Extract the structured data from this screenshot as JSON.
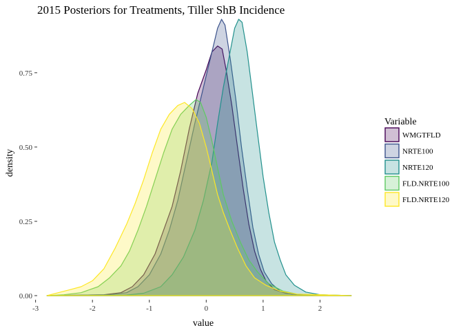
{
  "chart_data": {
    "type": "area",
    "title": "2015 Posteriors for Treatments, Tiller ShB Incidence",
    "xlabel": "value",
    "ylabel": "density",
    "xlim": [
      -2.85,
      2.6
    ],
    "ylim": [
      0,
      0.93
    ],
    "x_ticks": [
      "-3",
      "-2",
      "-1",
      "0",
      "1",
      "2"
    ],
    "y_ticks": [
      "0.00",
      "0.25",
      "0.50",
      "0.75"
    ],
    "grid": false,
    "legend": {
      "title": "Variable",
      "position": "right"
    },
    "series": [
      {
        "name": "WMGTFLD",
        "color": "#440154",
        "points": [
          [
            -2.8,
            0
          ],
          [
            -1.8,
            0.003
          ],
          [
            -1.5,
            0.01
          ],
          [
            -1.3,
            0.03
          ],
          [
            -1.1,
            0.07
          ],
          [
            -0.9,
            0.14
          ],
          [
            -0.75,
            0.22
          ],
          [
            -0.6,
            0.3
          ],
          [
            -0.45,
            0.42
          ],
          [
            -0.3,
            0.56
          ],
          [
            -0.15,
            0.68
          ],
          [
            0,
            0.76
          ],
          [
            0.1,
            0.82
          ],
          [
            0.2,
            0.84
          ],
          [
            0.28,
            0.83
          ],
          [
            0.35,
            0.76
          ],
          [
            0.45,
            0.64
          ],
          [
            0.55,
            0.5
          ],
          [
            0.65,
            0.36
          ],
          [
            0.75,
            0.24
          ],
          [
            0.85,
            0.15
          ],
          [
            0.95,
            0.09
          ],
          [
            1.05,
            0.05
          ],
          [
            1.2,
            0.02
          ],
          [
            1.4,
            0.008
          ],
          [
            1.7,
            0.002
          ],
          [
            2.55,
            0
          ]
        ]
      },
      {
        "name": "NRTE100",
        "color": "#3b528b",
        "points": [
          [
            -2.8,
            0
          ],
          [
            -1.7,
            0.003
          ],
          [
            -1.4,
            0.01
          ],
          [
            -1.2,
            0.03
          ],
          [
            -1.0,
            0.07
          ],
          [
            -0.8,
            0.14
          ],
          [
            -0.65,
            0.22
          ],
          [
            -0.5,
            0.32
          ],
          [
            -0.35,
            0.45
          ],
          [
            -0.2,
            0.58
          ],
          [
            -0.05,
            0.7
          ],
          [
            0.1,
            0.82
          ],
          [
            0.2,
            0.9
          ],
          [
            0.27,
            0.93
          ],
          [
            0.33,
            0.91
          ],
          [
            0.42,
            0.8
          ],
          [
            0.52,
            0.66
          ],
          [
            0.62,
            0.5
          ],
          [
            0.72,
            0.36
          ],
          [
            0.82,
            0.23
          ],
          [
            0.92,
            0.14
          ],
          [
            1.02,
            0.08
          ],
          [
            1.15,
            0.04
          ],
          [
            1.3,
            0.015
          ],
          [
            1.5,
            0.005
          ],
          [
            1.8,
            0.001
          ],
          [
            2.55,
            0
          ]
        ]
      },
      {
        "name": "NRTE120",
        "color": "#21908c",
        "points": [
          [
            -2.8,
            0
          ],
          [
            -1.4,
            0.002
          ],
          [
            -1.1,
            0.008
          ],
          [
            -0.8,
            0.03
          ],
          [
            -0.6,
            0.07
          ],
          [
            -0.4,
            0.13
          ],
          [
            -0.2,
            0.22
          ],
          [
            -0.05,
            0.32
          ],
          [
            0.1,
            0.45
          ],
          [
            0.2,
            0.58
          ],
          [
            0.3,
            0.7
          ],
          [
            0.4,
            0.8
          ],
          [
            0.5,
            0.9
          ],
          [
            0.57,
            0.93
          ],
          [
            0.63,
            0.92
          ],
          [
            0.72,
            0.82
          ],
          [
            0.8,
            0.7
          ],
          [
            0.9,
            0.55
          ],
          [
            1.0,
            0.4
          ],
          [
            1.1,
            0.28
          ],
          [
            1.2,
            0.18
          ],
          [
            1.3,
            0.12
          ],
          [
            1.4,
            0.07
          ],
          [
            1.55,
            0.035
          ],
          [
            1.75,
            0.012
          ],
          [
            2.0,
            0.003
          ],
          [
            2.55,
            0
          ]
        ]
      },
      {
        "name": "FLD.NRTE100",
        "color": "#5ec962",
        "points": [
          [
            -2.8,
            0
          ],
          [
            -2.5,
            0.003
          ],
          [
            -2.2,
            0.01
          ],
          [
            -1.9,
            0.03
          ],
          [
            -1.7,
            0.06
          ],
          [
            -1.5,
            0.1
          ],
          [
            -1.35,
            0.15
          ],
          [
            -1.2,
            0.22
          ],
          [
            -1.05,
            0.3
          ],
          [
            -0.9,
            0.39
          ],
          [
            -0.75,
            0.48
          ],
          [
            -0.6,
            0.56
          ],
          [
            -0.45,
            0.61
          ],
          [
            -0.3,
            0.64
          ],
          [
            -0.18,
            0.66
          ],
          [
            -0.1,
            0.65
          ],
          [
            0.0,
            0.6
          ],
          [
            0.1,
            0.52
          ],
          [
            0.2,
            0.43
          ],
          [
            0.3,
            0.34
          ],
          [
            0.45,
            0.25
          ],
          [
            0.6,
            0.18
          ],
          [
            0.75,
            0.12
          ],
          [
            0.9,
            0.08
          ],
          [
            1.1,
            0.04
          ],
          [
            1.35,
            0.015
          ],
          [
            1.6,
            0.005
          ],
          [
            2.55,
            0
          ]
        ]
      },
      {
        "name": "FLD.NRTE120",
        "color": "#fde725",
        "points": [
          [
            -2.8,
            0
          ],
          [
            -2.6,
            0.01
          ],
          [
            -2.4,
            0.02
          ],
          [
            -2.2,
            0.03
          ],
          [
            -2.0,
            0.05
          ],
          [
            -1.8,
            0.09
          ],
          [
            -1.6,
            0.16
          ],
          [
            -1.4,
            0.24
          ],
          [
            -1.25,
            0.31
          ],
          [
            -1.1,
            0.39
          ],
          [
            -0.95,
            0.48
          ],
          [
            -0.8,
            0.56
          ],
          [
            -0.65,
            0.61
          ],
          [
            -0.5,
            0.64
          ],
          [
            -0.38,
            0.65
          ],
          [
            -0.25,
            0.63
          ],
          [
            -0.12,
            0.58
          ],
          [
            0.0,
            0.5
          ],
          [
            0.1,
            0.42
          ],
          [
            0.2,
            0.34
          ],
          [
            0.3,
            0.28
          ],
          [
            0.42,
            0.22
          ],
          [
            0.55,
            0.16
          ],
          [
            0.7,
            0.1
          ],
          [
            0.85,
            0.06
          ],
          [
            1.05,
            0.035
          ],
          [
            1.3,
            0.015
          ],
          [
            1.6,
            0.005
          ],
          [
            2.55,
            0
          ]
        ]
      }
    ]
  }
}
